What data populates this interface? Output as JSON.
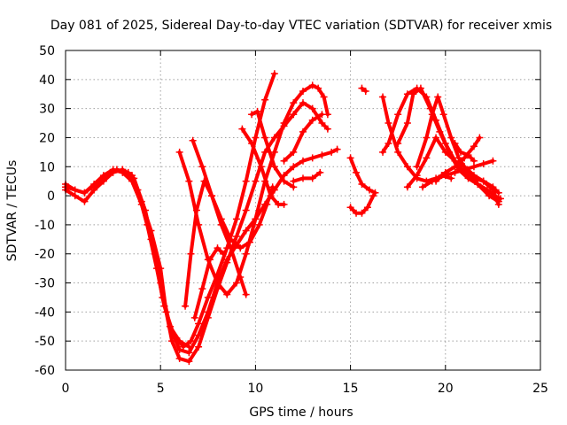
{
  "chart_data": {
    "type": "scatter",
    "title": "Day 081 of 2025, Sidereal Day-to-day VTEC variation (SDTVAR) for receiver xmis",
    "xlabel": "GPS time / hours",
    "ylabel": "SDTVAR / TECUs",
    "xlim": [
      0,
      25
    ],
    "ylim": [
      -60,
      50
    ],
    "xticks": [
      "0",
      "5",
      "10",
      "15",
      "20",
      "25"
    ],
    "yticks": [
      "-60",
      "-50",
      "-40",
      "-30",
      "-20",
      "-10",
      "0",
      "10",
      "20",
      "30",
      "40",
      "50"
    ],
    "grid": true,
    "marker": "+",
    "color": "#ff0000",
    "series": [
      {
        "points": [
          [
            0,
            4
          ],
          [
            0.5,
            2
          ],
          [
            1,
            1
          ],
          [
            1.5,
            4
          ],
          [
            2,
            7
          ],
          [
            2.5,
            9
          ],
          [
            3,
            8
          ],
          [
            3.5,
            5
          ],
          [
            4,
            -3
          ],
          [
            4.5,
            -15
          ],
          [
            5,
            -30
          ],
          [
            5.5,
            -45
          ],
          [
            6,
            -53
          ],
          [
            6.5,
            -54
          ],
          [
            7,
            -48
          ],
          [
            7.5,
            -40
          ],
          [
            8,
            -30
          ],
          [
            8.5,
            -22
          ],
          [
            9,
            -17
          ],
          [
            9.5,
            -12
          ],
          [
            10,
            -8
          ],
          [
            10.5,
            -3
          ],
          [
            11,
            2
          ],
          [
            11.5,
            7
          ],
          [
            12,
            10
          ],
          [
            12.5,
            12
          ],
          [
            13,
            13
          ],
          [
            13.5,
            14
          ],
          [
            14,
            15
          ],
          [
            14.3,
            16
          ]
        ]
      },
      {
        "points": [
          [
            0,
            2
          ],
          [
            0.5,
            0
          ],
          [
            1,
            -2
          ],
          [
            1.5,
            2
          ],
          [
            2,
            5
          ],
          [
            2.5,
            8
          ],
          [
            3,
            9
          ],
          [
            3.5,
            7
          ],
          [
            4,
            -2
          ],
          [
            4.5,
            -12
          ],
          [
            5,
            -25
          ],
          [
            5.3,
            -40
          ],
          [
            5.6,
            -50
          ],
          [
            6,
            -56
          ],
          [
            6.5,
            -57
          ],
          [
            7,
            -52
          ],
          [
            7.5,
            -42
          ],
          [
            8,
            -32
          ],
          [
            8.5,
            -23
          ],
          [
            9,
            -14
          ],
          [
            9.5,
            -5
          ],
          [
            10,
            5
          ],
          [
            10.5,
            15
          ],
          [
            11,
            20
          ],
          [
            11.5,
            24
          ],
          [
            12,
            28
          ],
          [
            12.5,
            32
          ],
          [
            13,
            30
          ],
          [
            13.5,
            25
          ],
          [
            13.8,
            23
          ]
        ]
      },
      {
        "points": [
          [
            0,
            3
          ],
          [
            1,
            1
          ],
          [
            2,
            6
          ],
          [
            2.7,
            9
          ],
          [
            3.3,
            8
          ],
          [
            3.8,
            2
          ],
          [
            4.3,
            -10
          ],
          [
            4.8,
            -25
          ],
          [
            5.2,
            -38
          ],
          [
            5.7,
            -48
          ],
          [
            6.2,
            -52
          ],
          [
            6.6,
            -50
          ],
          [
            7,
            -44
          ],
          [
            7.5,
            -35
          ],
          [
            8,
            -27
          ],
          [
            8.5,
            -18
          ],
          [
            9,
            -8
          ],
          [
            9.5,
            5
          ],
          [
            10,
            20
          ],
          [
            10.5,
            33
          ],
          [
            11,
            42
          ]
        ]
      },
      {
        "points": [
          [
            3,
            9
          ],
          [
            3.6,
            6
          ],
          [
            4.2,
            -5
          ],
          [
            4.7,
            -20
          ],
          [
            5.1,
            -35
          ],
          [
            5.5,
            -45
          ],
          [
            6,
            -50
          ],
          [
            6.5,
            -52
          ]
        ]
      },
      {
        "points": [
          [
            6,
            15
          ],
          [
            6.5,
            5
          ],
          [
            7,
            -10
          ],
          [
            7.5,
            -22
          ],
          [
            8,
            -30
          ],
          [
            8.5,
            -34
          ],
          [
            9,
            -30
          ],
          [
            9.5,
            -20
          ],
          [
            10,
            -8
          ],
          [
            10.5,
            5
          ],
          [
            11,
            15
          ],
          [
            11.5,
            25
          ],
          [
            12,
            32
          ],
          [
            12.5,
            36
          ],
          [
            13,
            38
          ],
          [
            13.3,
            37
          ],
          [
            13.6,
            34
          ],
          [
            13.8,
            28
          ]
        ]
      },
      {
        "points": [
          [
            6.7,
            19
          ],
          [
            7.2,
            10
          ],
          [
            7.7,
            0
          ],
          [
            8.2,
            -8
          ],
          [
            8.7,
            -15
          ],
          [
            9.2,
            -18
          ],
          [
            9.7,
            -16
          ],
          [
            10.2,
            -10
          ],
          [
            10.6,
            -3
          ],
          [
            10.9,
            3
          ]
        ]
      },
      {
        "points": [
          [
            6.3,
            -38
          ],
          [
            6.6,
            -20
          ],
          [
            6.9,
            -5
          ],
          [
            7.3,
            5
          ],
          [
            7.7,
            0
          ],
          [
            8.2,
            -10
          ],
          [
            8.7,
            -18
          ],
          [
            9.2,
            -28
          ],
          [
            9.5,
            -34
          ]
        ]
      },
      {
        "points": [
          [
            6.8,
            -42
          ],
          [
            7.2,
            -32
          ],
          [
            7.6,
            -22
          ],
          [
            8,
            -18
          ],
          [
            8.3,
            -20
          ]
        ]
      },
      {
        "points": [
          [
            9.3,
            23
          ],
          [
            9.8,
            18
          ],
          [
            10.3,
            10
          ],
          [
            10.8,
            0
          ],
          [
            11.2,
            -3
          ],
          [
            11.5,
            -3
          ]
        ]
      },
      {
        "points": [
          [
            9.8,
            28
          ],
          [
            10.1,
            29
          ],
          [
            10.5,
            20
          ],
          [
            11,
            10
          ],
          [
            11.5,
            5
          ],
          [
            12,
            3
          ]
        ]
      },
      {
        "points": [
          [
            11.5,
            12
          ],
          [
            12,
            15
          ],
          [
            12.5,
            22
          ],
          [
            13,
            26
          ],
          [
            13.5,
            28
          ]
        ]
      },
      {
        "points": [
          [
            12,
            5
          ],
          [
            12.5,
            6
          ],
          [
            13,
            6
          ],
          [
            13.4,
            8
          ]
        ]
      },
      {
        "points": [
          [
            15,
            13
          ],
          [
            15.3,
            8
          ],
          [
            15.6,
            4
          ],
          [
            16,
            2
          ],
          [
            16.3,
            1
          ]
        ]
      },
      {
        "points": [
          [
            15,
            -4
          ],
          [
            15.3,
            -6
          ],
          [
            15.6,
            -6
          ],
          [
            15.9,
            -4
          ],
          [
            16.2,
            0
          ]
        ]
      },
      {
        "points": [
          [
            15.6,
            37
          ],
          [
            15.8,
            36
          ]
        ]
      },
      {
        "points": [
          [
            16.7,
            34
          ],
          [
            17,
            25
          ],
          [
            17.5,
            15
          ],
          [
            18,
            10
          ],
          [
            18.5,
            6
          ],
          [
            19,
            5
          ],
          [
            19.5,
            6
          ],
          [
            20,
            7
          ],
          [
            20.5,
            8
          ],
          [
            21,
            9
          ],
          [
            21.5,
            10
          ],
          [
            22,
            11
          ],
          [
            22.5,
            12
          ]
        ]
      },
      {
        "points": [
          [
            16.7,
            15
          ],
          [
            17,
            18
          ],
          [
            17.5,
            28
          ],
          [
            18,
            35
          ],
          [
            18.5,
            37
          ],
          [
            19,
            34
          ],
          [
            19.5,
            26
          ],
          [
            20,
            18
          ],
          [
            20.5,
            12
          ],
          [
            21,
            8
          ],
          [
            21.5,
            6
          ],
          [
            22,
            5
          ],
          [
            22.5,
            3
          ],
          [
            22.8,
            1
          ]
        ]
      },
      {
        "points": [
          [
            17.5,
            18
          ],
          [
            18,
            25
          ],
          [
            18.3,
            35
          ],
          [
            18.7,
            37
          ],
          [
            19.2,
            30
          ],
          [
            19.7,
            22
          ],
          [
            20.2,
            15
          ],
          [
            20.7,
            9
          ],
          [
            21.2,
            6
          ],
          [
            21.7,
            4
          ],
          [
            22.2,
            2
          ],
          [
            22.6,
            0
          ],
          [
            22.9,
            -1
          ]
        ]
      },
      {
        "points": [
          [
            18,
            3
          ],
          [
            18.5,
            7
          ],
          [
            19,
            13
          ],
          [
            19.5,
            20
          ],
          [
            20,
            15
          ],
          [
            20.5,
            12
          ],
          [
            21,
            10
          ],
          [
            21.5,
            7
          ],
          [
            22,
            5
          ],
          [
            22.5,
            2
          ],
          [
            22.8,
            -3
          ]
        ]
      },
      {
        "points": [
          [
            18.5,
            10
          ],
          [
            19,
            20
          ],
          [
            19.3,
            28
          ],
          [
            19.6,
            34
          ],
          [
            19.9,
            28
          ],
          [
            20.3,
            20
          ],
          [
            20.7,
            13
          ],
          [
            21.2,
            8
          ],
          [
            21.7,
            4
          ],
          [
            22.3,
            0
          ],
          [
            22.8,
            -2
          ]
        ]
      },
      {
        "points": [
          [
            19.5,
            5
          ],
          [
            20,
            8
          ],
          [
            20.5,
            10
          ],
          [
            21,
            13
          ],
          [
            21.5,
            17
          ],
          [
            21.8,
            20
          ]
        ]
      },
      {
        "points": [
          [
            20.5,
            18
          ],
          [
            20.8,
            15
          ],
          [
            21.2,
            14
          ],
          [
            21.5,
            12
          ]
        ]
      },
      {
        "points": [
          [
            18.8,
            3
          ],
          [
            19.3,
            5
          ],
          [
            19.8,
            7
          ],
          [
            20.3,
            6
          ]
        ]
      }
    ]
  }
}
